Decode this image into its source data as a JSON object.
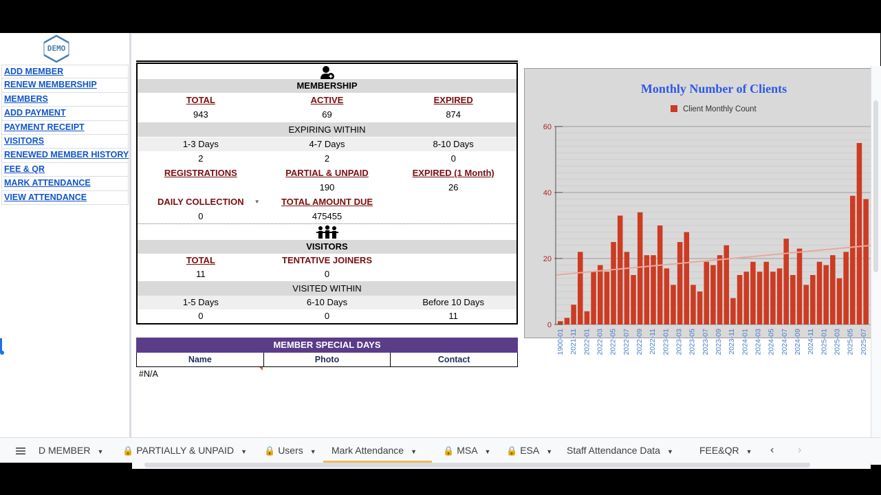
{
  "logo": {
    "text": "DEMO"
  },
  "nav": [
    "ADD MEMBER",
    "RENEW MEMBERSHIP",
    "MEMBERS",
    "ADD PAYMENT",
    "PAYMENT RECEIPT",
    "VISITORS",
    "RENEWED MEMBER HISTORY",
    "FEE & QR",
    "MARK ATTENDANCE",
    "VIEW ATTENDANCE"
  ],
  "membership": {
    "title": "MEMBERSHIP",
    "total_label": "TOTAL",
    "active_label": "ACTIVE",
    "expired_label": "EXPIRED",
    "total": "943",
    "active": "69",
    "expired": "874",
    "expiring_title": "EXPIRING WITHIN",
    "exp_h1": "1-3 Days",
    "exp_h2": "4-7 Days",
    "exp_h3": "8-10 Days",
    "exp_v1": "2",
    "exp_v2": "2",
    "exp_v3": "0",
    "reg_label": "REGISTRATIONS",
    "partial_label": "PARTIAL & UNPAID",
    "exp1m_label": "EXPIRED (1 Month)",
    "reg_value": "",
    "partial_value": "190",
    "exp1m_value": "26",
    "daily_label": "DAILY COLLECTION",
    "due_label": "TOTAL AMOUNT DUE",
    "daily_value": "0",
    "due_value": "475455"
  },
  "visitors": {
    "title": "VISITORS",
    "total_label": "TOTAL",
    "tentative_label": "TENTATIVE JOINERS",
    "total": "11",
    "tentative": "0",
    "visited_title": "VISITED WITHIN",
    "v_h1": "1-5 Days",
    "v_h2": "6-10 Days",
    "v_h3": "Before 10 Days",
    "v_v1": "0",
    "v_v2": "0",
    "v_v3": "11"
  },
  "special_days": {
    "title": "MEMBER SPECIAL DAYS",
    "col_name": "Name",
    "col_photo": "Photo",
    "col_contact": "Contact",
    "value": "#N/A"
  },
  "chart_data": {
    "type": "bar",
    "title": "Monthly Number of Clients",
    "legend": "Client Monthly Count",
    "legend_position": "top",
    "bar_color": "#cc3b22",
    "trendline_color": "#e8a99a",
    "ylim": [
      0,
      60
    ],
    "yticks": [
      "0",
      "20",
      "40",
      "60"
    ],
    "xticks": [
      "1900-01",
      "2021-11",
      "2022-01",
      "2022-03",
      "2022-05",
      "2022-07",
      "2022-09",
      "2022-11",
      "2023-01",
      "2023-03",
      "2023-05",
      "2023-07",
      "2023-09",
      "2023-11",
      "2024-01",
      "2024-03",
      "2024-05",
      "2024-07",
      "2024-09",
      "2024-11",
      "2025-01",
      "2025-03",
      "2025-05",
      "2025-07"
    ],
    "values": [
      1,
      2,
      6,
      22,
      4,
      16,
      18,
      16,
      25,
      33,
      22,
      15,
      34,
      21,
      21,
      30,
      17,
      12,
      25,
      28,
      12,
      10,
      19,
      18,
      21,
      24,
      8,
      15,
      16,
      19,
      16,
      19,
      16,
      17,
      26,
      15,
      23,
      12,
      15,
      19,
      18,
      21,
      14,
      22,
      39,
      55,
      38
    ],
    "trend": [
      15,
      24
    ]
  },
  "tabs": [
    {
      "label": "D MEMBER",
      "locked": false
    },
    {
      "label": "PARTIALLY & UNPAID",
      "locked": true
    },
    {
      "label": "Users",
      "locked": true
    },
    {
      "label": "Mark Attendance",
      "locked": false
    },
    {
      "label": "MSA",
      "locked": true
    },
    {
      "label": "ESA",
      "locked": true
    },
    {
      "label": "Staff Attendance Data",
      "locked": false
    },
    {
      "label": "FEE&QR",
      "locked": false
    }
  ]
}
